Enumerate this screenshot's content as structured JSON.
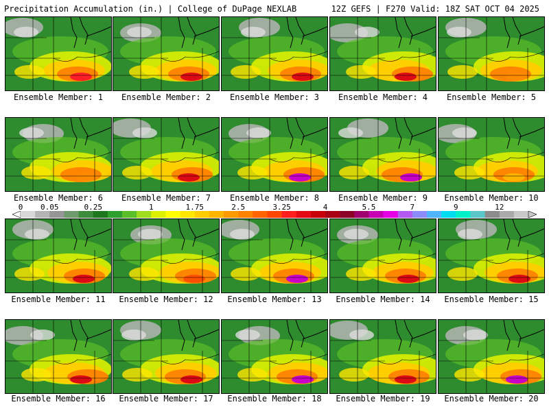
{
  "header": {
    "left": "Precipitation Accumulation (in.) | College of DuPage NEXLAB",
    "right": "12Z GEFS | F270 Valid: 18Z SAT OCT 04 2025"
  },
  "members": [
    {
      "label": "Ensemble Member: 1",
      "max_color": "#ff1e28"
    },
    {
      "label": "Ensemble Member: 2",
      "max_color": "#dc0a14"
    },
    {
      "label": "Ensemble Member: 3",
      "max_color": "#dc0a14"
    },
    {
      "label": "Ensemble Member: 4",
      "max_color": "#dc0a14"
    },
    {
      "label": "Ensemble Member: 5",
      "max_color": "#ff8c00"
    },
    {
      "label": "Ensemble Member: 6",
      "max_color": "#ff8c00"
    },
    {
      "label": "Ensemble Member: 7",
      "max_color": "#dc0a14"
    },
    {
      "label": "Ensemble Member: 8",
      "max_color": "#c800c8"
    },
    {
      "label": "Ensemble Member: 9",
      "max_color": "#c800c8"
    },
    {
      "label": "Ensemble Member: 10",
      "max_color": "#ffb400"
    },
    {
      "label": "Ensemble Member: 11",
      "max_color": "#dc0a14"
    },
    {
      "label": "Ensemble Member: 12",
      "max_color": "#ff5000"
    },
    {
      "label": "Ensemble Member: 13",
      "max_color": "#c800c8"
    },
    {
      "label": "Ensemble Member: 14",
      "max_color": "#dc0a14"
    },
    {
      "label": "Ensemble Member: 15",
      "max_color": "#dc0a14"
    },
    {
      "label": "Ensemble Member: 16",
      "max_color": "#dc0a14"
    },
    {
      "label": "Ensemble Member: 17",
      "max_color": "#dc0a14"
    },
    {
      "label": "Ensemble Member: 18",
      "max_color": "#c800c8"
    },
    {
      "label": "Ensemble Member: 19",
      "max_color": "#dc0a14"
    },
    {
      "label": "Ensemble Member: 20",
      "max_color": "#c800c8"
    }
  ],
  "colorbar": {
    "labels": [
      "0",
      "0.05",
      "0.25",
      "1",
      "1.75",
      "2.5",
      "3.25",
      "4",
      "5.5",
      "7",
      "9",
      "12"
    ],
    "label_slots": [
      0,
      2,
      5,
      9,
      12,
      15,
      18,
      21,
      24,
      27,
      30,
      33
    ],
    "colors": [
      "#d8d8d8",
      "#b4b4b4",
      "#969696",
      "#6e9a6e",
      "#3c8c3c",
      "#1e781e",
      "#2ea02e",
      "#5abe28",
      "#a0dc1e",
      "#dcf000",
      "#ffff00",
      "#ffe600",
      "#ffcd00",
      "#ffb400",
      "#ff9b00",
      "#ff8200",
      "#ff6400",
      "#ff4600",
      "#ff1e1e",
      "#e60a14",
      "#c8000a",
      "#aa0014",
      "#8c0028",
      "#a0006e",
      "#c800b4",
      "#e600e6",
      "#b45af0",
      "#8c8cff",
      "#50b4ff",
      "#00dcf0",
      "#00f0c8",
      "#5ac8c8",
      "#8c8c8c",
      "#aaaaaa",
      "#c8c8c8"
    ]
  }
}
